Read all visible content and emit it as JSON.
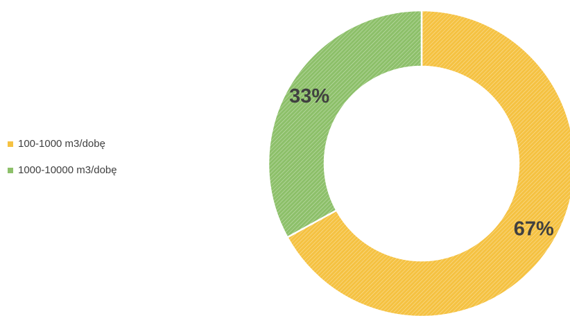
{
  "chart_data": {
    "type": "donut",
    "categories": [
      "100-1000 m3/dobę",
      "1000-10000 m3/dobę"
    ],
    "values": [
      67,
      33
    ],
    "value_labels": [
      "67%",
      "33%"
    ],
    "colors": [
      "#f5c242",
      "#8dc06a"
    ],
    "legend": "left"
  }
}
